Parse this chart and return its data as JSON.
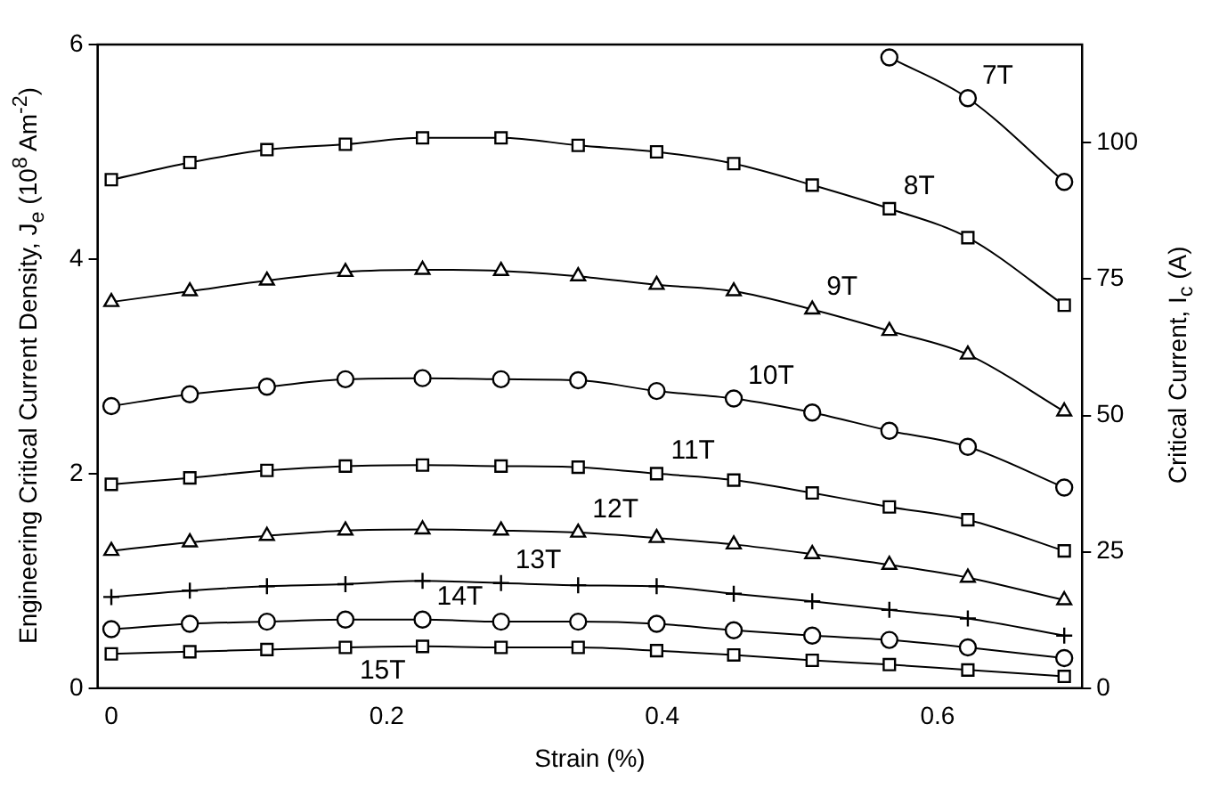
{
  "chart_data": {
    "type": "line",
    "xlabel": "Strain (%)",
    "ylabel": "Engineering Critical Current Density, J$_{e}$ (10$^{8}$ Am$^{-2}$)",
    "y2label": "Critical Current, I$_{c}$ (A)",
    "x": [
      0,
      0.057,
      0.113,
      0.17,
      0.226,
      0.283,
      0.339,
      0.396,
      0.452,
      0.509,
      0.565,
      0.622,
      0.692
    ],
    "xlim": [
      -0.01,
      0.705
    ],
    "xticks": [
      0,
      0.2,
      0.4,
      0.6
    ],
    "ylim": [
      0,
      6
    ],
    "yticks": [
      0,
      2,
      4,
      6
    ],
    "y2lim": [
      0,
      118
    ],
    "y2ticks": [
      0,
      25,
      50,
      75,
      100
    ],
    "grid": false,
    "legend": false,
    "series": [
      {
        "name": "7T",
        "color": "#000000",
        "marker": "circle",
        "values": [
          null,
          null,
          null,
          null,
          null,
          null,
          null,
          null,
          null,
          null,
          5.88,
          5.5,
          4.72
        ]
      },
      {
        "name": "8T",
        "color": "#000000",
        "marker": "square",
        "values": [
          4.74,
          4.9,
          5.02,
          5.07,
          5.13,
          5.13,
          5.06,
          5.0,
          4.89,
          4.69,
          4.47,
          4.2,
          3.57
        ]
      },
      {
        "name": "9T",
        "color": "#000000",
        "marker": "triangle",
        "values": [
          3.6,
          3.7,
          3.8,
          3.88,
          3.9,
          3.89,
          3.84,
          3.76,
          3.7,
          3.53,
          3.33,
          3.11,
          2.58
        ]
      },
      {
        "name": "10T",
        "color": "#000000",
        "marker": "circle",
        "values": [
          2.63,
          2.74,
          2.81,
          2.88,
          2.89,
          2.88,
          2.87,
          2.77,
          2.7,
          2.57,
          2.4,
          2.25,
          1.87
        ]
      },
      {
        "name": "11T",
        "color": "#000000",
        "marker": "square",
        "values": [
          1.9,
          1.96,
          2.03,
          2.07,
          2.08,
          2.07,
          2.06,
          2.0,
          1.94,
          1.82,
          1.69,
          1.57,
          1.28
        ]
      },
      {
        "name": "12T",
        "color": "#000000",
        "marker": "triangle",
        "values": [
          1.28,
          1.36,
          1.42,
          1.47,
          1.48,
          1.47,
          1.45,
          1.4,
          1.34,
          1.25,
          1.15,
          1.03,
          0.82
        ]
      },
      {
        "name": "13T",
        "color": "#000000",
        "marker": "cross",
        "values": [
          0.85,
          0.91,
          0.95,
          0.97,
          1.0,
          0.98,
          0.96,
          0.95,
          0.88,
          0.81,
          0.73,
          0.65,
          0.49
        ]
      },
      {
        "name": "14T",
        "color": "#000000",
        "marker": "circle",
        "values": [
          0.55,
          0.6,
          0.62,
          0.64,
          0.64,
          0.62,
          0.62,
          0.6,
          0.54,
          0.49,
          0.45,
          0.38,
          0.28
        ]
      },
      {
        "name": "15T",
        "color": "#000000",
        "marker": "square",
        "values": [
          0.32,
          0.34,
          0.36,
          0.38,
          0.39,
          0.38,
          0.38,
          0.35,
          0.31,
          0.26,
          0.22,
          0.17,
          0.11
        ]
      }
    ]
  }
}
